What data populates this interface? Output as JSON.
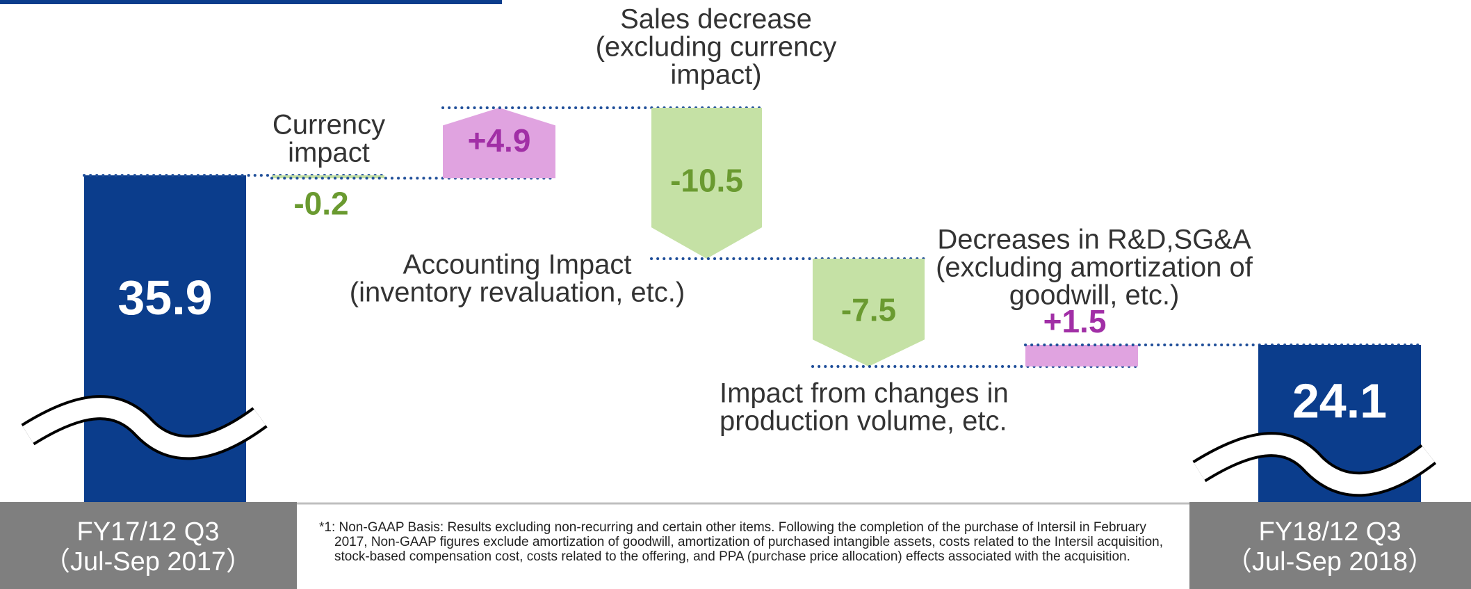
{
  "chart_data": {
    "type": "waterfall",
    "categories": [
      [
        "FY17/12 Q3",
        "（Jul-Sep 2017）"
      ],
      null,
      null,
      null,
      null,
      null,
      [
        "FY18/12 Q3",
        "（Jul-Sep 2018）"
      ]
    ],
    "values": [
      35.9,
      -0.2,
      4.9,
      -10.5,
      -7.5,
      1.5,
      24.1
    ],
    "value_labels": [
      "35.9",
      "-0.2",
      "+4.9",
      "-10.5",
      "-7.5",
      "+1.5",
      "24.1"
    ],
    "colors": {
      "total": "#0b3d8c",
      "increase": "#e0a3e0",
      "decrease": "#c5e1a5"
    },
    "label_colors": {
      "total": "#ffffff",
      "increase": "#a12fa6",
      "decrease": "#6a9a30"
    },
    "annotations": [
      {
        "lines": [
          "Currency",
          "impact"
        ]
      },
      {
        "lines": [
          "Sales decrease",
          "(excluding currency",
          "impact)"
        ]
      },
      {
        "lines": [
          "Accounting Impact",
          "(inventory revaluation, etc.)"
        ]
      },
      {
        "lines": [
          "Impact from changes in",
          "production volume, etc."
        ]
      },
      {
        "lines": [
          "Decreases in R&D,SG&A",
          "(excluding amortization of",
          "goodwill, etc.)"
        ]
      }
    ]
  },
  "footnote": "*1: Non-GAAP Basis: Results excluding non-recurring and certain other items. Following the completion of the purchase of Intersil in February 2017, Non-GAAP figures exclude amortization of goodwill, amortization of purchased intangible assets, costs related to the Intersil acquisition, stock-based compensation cost, costs related to the offering, and PPA (purchase price allocation) effects associated with the acquisition."
}
